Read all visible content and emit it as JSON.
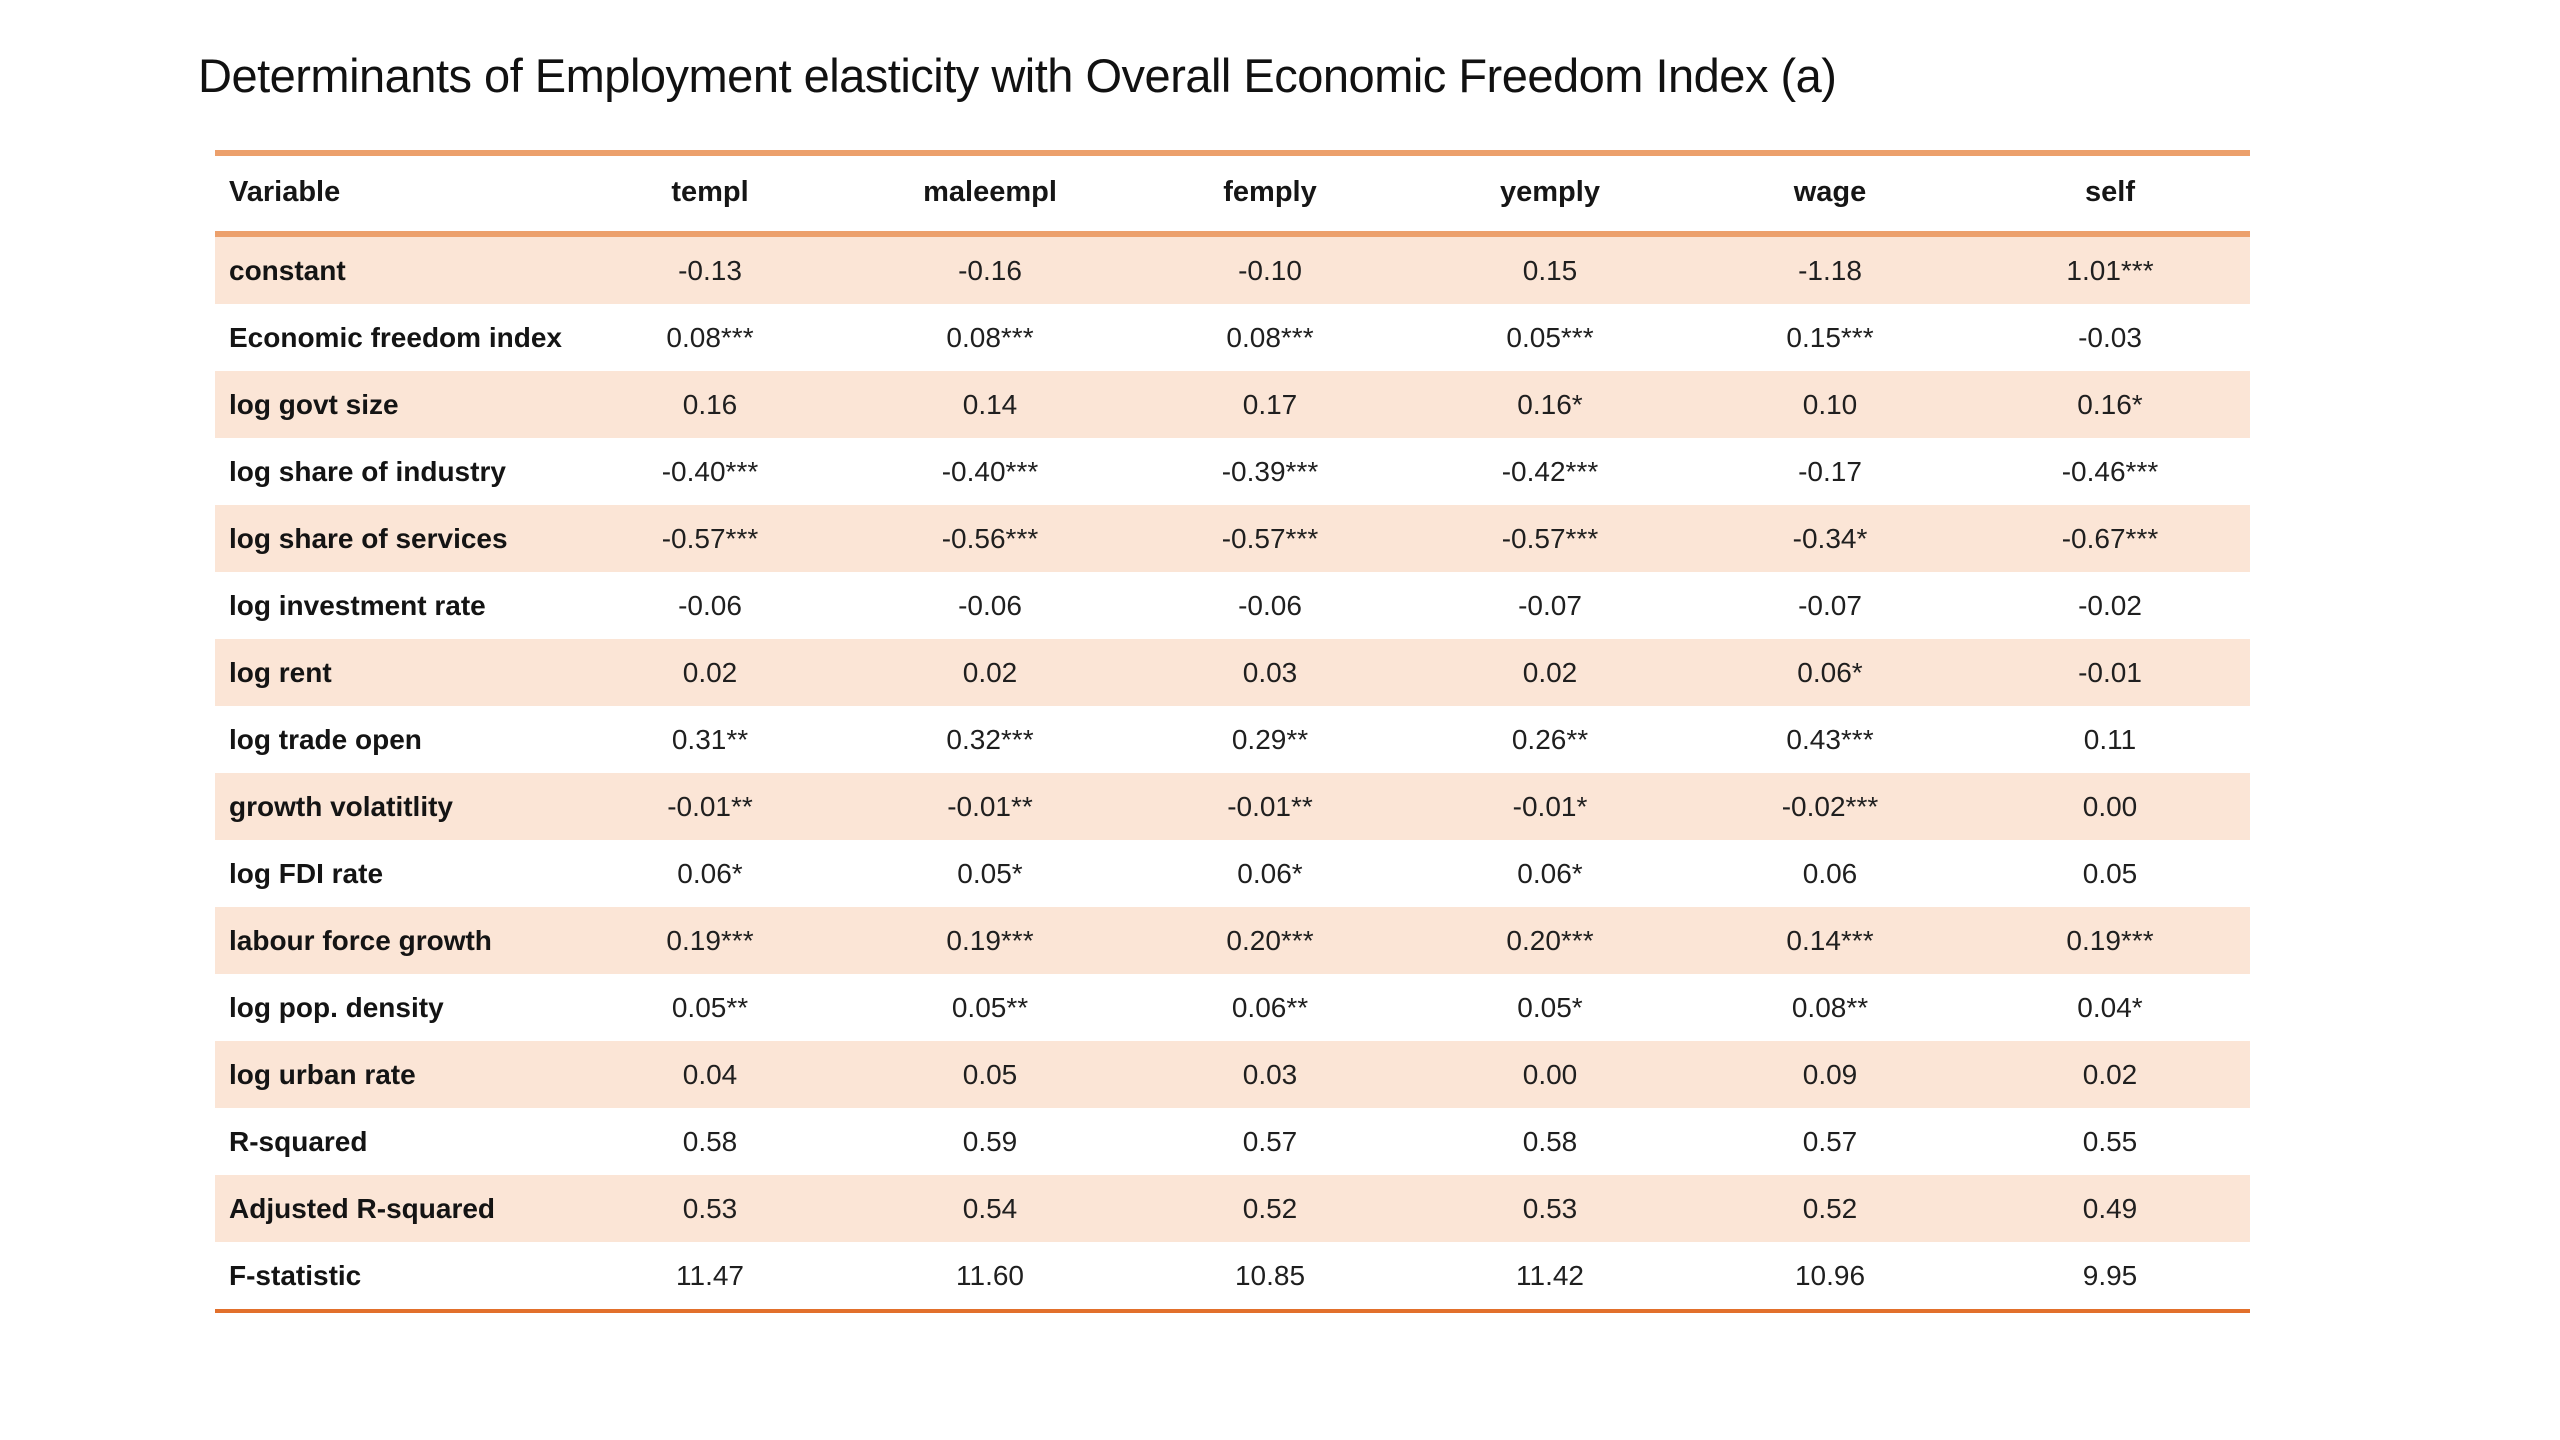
{
  "title": "Determinants of Employment elasticity with Overall Economic Freedom Index (a)",
  "table": {
    "columns": [
      "Variable",
      "templ",
      "maleempl",
      "femply",
      "yemply",
      "wage",
      "self"
    ],
    "rows": [
      {
        "label": "constant",
        "values": [
          "-0.13",
          "-0.16",
          "-0.10",
          "0.15",
          "-1.18",
          "1.01***"
        ],
        "shaded": true
      },
      {
        "label": "Economic freedom index",
        "values": [
          "0.08***",
          "0.08***",
          "0.08***",
          "0.05***",
          "0.15***",
          "-0.03"
        ],
        "shaded": false
      },
      {
        "label": "log govt size",
        "values": [
          "0.16",
          "0.14",
          "0.17",
          "0.16*",
          "0.10",
          "0.16*"
        ],
        "shaded": true
      },
      {
        "label": "log share of industry",
        "values": [
          "-0.40***",
          "-0.40***",
          "-0.39***",
          "-0.42***",
          "-0.17",
          "-0.46***"
        ],
        "shaded": false
      },
      {
        "label": "log share of services",
        "values": [
          "-0.57***",
          "-0.56***",
          "-0.57***",
          "-0.57***",
          "-0.34*",
          "-0.67***"
        ],
        "shaded": true
      },
      {
        "label": "log investment rate",
        "values": [
          "-0.06",
          "-0.06",
          "-0.06",
          "-0.07",
          "-0.07",
          "-0.02"
        ],
        "shaded": false
      },
      {
        "label": "log rent",
        "values": [
          "0.02",
          "0.02",
          "0.03",
          "0.02",
          "0.06*",
          "-0.01"
        ],
        "shaded": true
      },
      {
        "label": "log trade open",
        "values": [
          "0.31**",
          "0.32***",
          "0.29**",
          "0.26**",
          "0.43***",
          "0.11"
        ],
        "shaded": false
      },
      {
        "label": "growth volatitlity",
        "values": [
          "-0.01**",
          "-0.01**",
          "-0.01**",
          "-0.01*",
          "-0.02***",
          "0.00"
        ],
        "shaded": true
      },
      {
        "label": "log FDI rate",
        "values": [
          "0.06*",
          "0.05*",
          "0.06*",
          "0.06*",
          "0.06",
          "0.05"
        ],
        "shaded": false
      },
      {
        "label": "labour force growth",
        "values": [
          "0.19***",
          "0.19***",
          "0.20***",
          "0.20***",
          "0.14***",
          "0.19***"
        ],
        "shaded": true
      },
      {
        "label": "log pop. density",
        "values": [
          "0.05**",
          "0.05**",
          "0.06**",
          "0.05*",
          "0.08**",
          "0.04*"
        ],
        "shaded": false
      },
      {
        "label": "log urban rate",
        "values": [
          "0.04",
          "0.05",
          "0.03",
          "0.00",
          "0.09",
          "0.02"
        ],
        "shaded": true
      },
      {
        "label": "R-squared",
        "values": [
          "0.58",
          "0.59",
          "0.57",
          "0.58",
          "0.57",
          "0.55"
        ],
        "shaded": false
      },
      {
        "label": "Adjusted R-squared",
        "values": [
          "0.53",
          "0.54",
          "0.52",
          "0.53",
          "0.52",
          "0.49"
        ],
        "shaded": true
      },
      {
        "label": "F-statistic",
        "values": [
          "11.47",
          "11.60",
          "10.85",
          "11.42",
          "10.96",
          "9.95"
        ],
        "shaded": false
      }
    ]
  },
  "colors": {
    "row_shade": "#FBE5D6",
    "border_top": "#ECA06C",
    "border_bottom": "#E2702C",
    "background": "#FFFFFF"
  }
}
